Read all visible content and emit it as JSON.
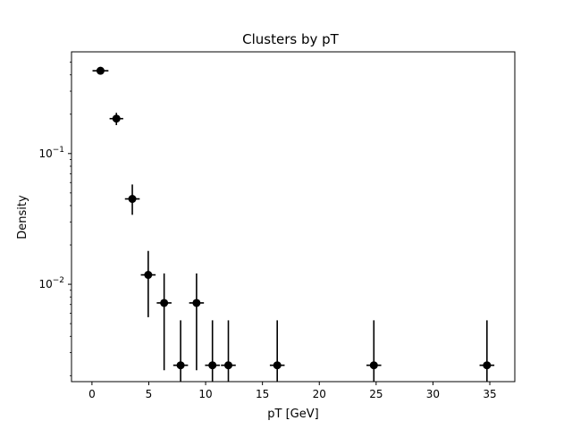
{
  "chart_data": {
    "type": "scatter",
    "title": "Clusters by pT",
    "xlabel": "pT [GeV]",
    "ylabel": "Density",
    "xlim": [
      -1.8,
      37.2
    ],
    "ylim": [
      0.0018,
      0.6
    ],
    "yscale": "log",
    "x_ticks": [
      0,
      5,
      10,
      15,
      20,
      25,
      30,
      35
    ],
    "x_tick_labels": [
      "0",
      "5",
      "10",
      "15",
      "20",
      "25",
      "30",
      "35"
    ],
    "y_major_ticks": [
      0.01,
      0.1
    ],
    "y_tick_labels": [
      {
        "base": "10",
        "exp": "−2"
      },
      {
        "base": "10",
        "exp": "−1"
      }
    ],
    "y_minor_ticks": [
      0.002,
      0.003,
      0.004,
      0.005,
      0.006,
      0.007,
      0.008,
      0.009,
      0.02,
      0.03,
      0.04,
      0.05,
      0.06,
      0.07,
      0.08,
      0.09,
      0.2,
      0.3,
      0.4,
      0.5
    ],
    "grid": false,
    "legend": "none",
    "marker_color": "#000000",
    "points": [
      {
        "x": 0.75,
        "xerr": 0.7,
        "y": 0.43,
        "ylo": 0.41,
        "yhi": 0.45
      },
      {
        "x": 2.15,
        "xerr": 0.6,
        "y": 0.185,
        "ylo": 0.165,
        "yhi": 0.205
      },
      {
        "x": 3.55,
        "xerr": 0.65,
        "y": 0.045,
        "ylo": 0.034,
        "yhi": 0.058
      },
      {
        "x": 4.95,
        "xerr": 0.65,
        "y": 0.0118,
        "ylo": 0.0056,
        "yhi": 0.018
      },
      {
        "x": 6.35,
        "xerr": 0.65,
        "y": 0.0072,
        "ylo": 0.0022,
        "yhi": 0.0121
      },
      {
        "x": 7.8,
        "xerr": 0.65,
        "y": 0.0024,
        "ylo": 0.0012,
        "yhi": 0.0053
      },
      {
        "x": 9.2,
        "xerr": 0.65,
        "y": 0.0072,
        "ylo": 0.0022,
        "yhi": 0.0121
      },
      {
        "x": 10.6,
        "xerr": 0.65,
        "y": 0.0024,
        "ylo": 0.0012,
        "yhi": 0.0053
      },
      {
        "x": 12.0,
        "xerr": 0.65,
        "y": 0.0024,
        "ylo": 0.0012,
        "yhi": 0.0053
      },
      {
        "x": 16.3,
        "xerr": 0.65,
        "y": 0.0024,
        "ylo": 0.0012,
        "yhi": 0.0053
      },
      {
        "x": 24.8,
        "xerr": 0.65,
        "y": 0.0024,
        "ylo": 0.0012,
        "yhi": 0.0053
      },
      {
        "x": 34.75,
        "xerr": 0.65,
        "y": 0.0024,
        "ylo": 0.0012,
        "yhi": 0.0053
      }
    ]
  }
}
